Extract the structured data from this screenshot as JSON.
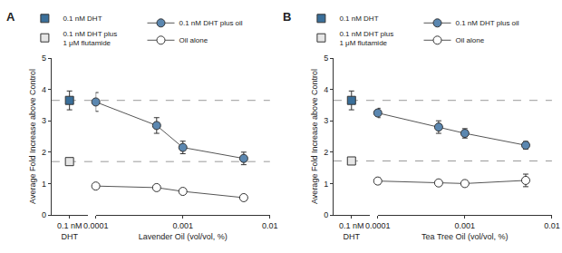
{
  "chart_data": [
    {
      "type": "scatter",
      "title": "A",
      "ylabel": "Average Fold Increase above Control",
      "ylim": [
        0,
        5
      ],
      "yticks": [
        0,
        1,
        2,
        3,
        4,
        5
      ],
      "grid": false,
      "log": "x",
      "legend": "top",
      "control": {
        "xlabel": "DHT",
        "categories": [
          "0.1 nM"
        ]
      },
      "oil": {
        "xlabel": "Lavender Oil (vol/vol, %)",
        "x": [
          0.0001,
          0.0005,
          0.001,
          0.005
        ],
        "xlim": [
          0.0001,
          0.01
        ],
        "xticks": [
          0.0001,
          0.001,
          0.01
        ]
      },
      "series": [
        {
          "name": "0.1 nM DHT",
          "axis": "control",
          "color": "#3a6f9a",
          "marker": "square",
          "values": [
            3.65
          ],
          "error": [
            0.3
          ]
        },
        {
          "name": "0.1 nM DHT plus\n1 μM flutamide",
          "axis": "control",
          "color": "#e6e6e6",
          "marker": "square",
          "values": [
            1.7
          ],
          "error": [
            0.1
          ]
        },
        {
          "name": "0.1 nM DHT plus oil",
          "axis": "oil",
          "color": "#5b87b0",
          "marker": "circle",
          "line_style": "solid",
          "values": [
            3.6,
            2.85,
            2.15,
            1.8
          ],
          "error": [
            0.3,
            0.25,
            0.2,
            0.2
          ]
        },
        {
          "name": "Oil alone",
          "axis": "oil",
          "color": "#ffffff",
          "marker": "circle",
          "line_style": "solid",
          "values": [
            0.92,
            0.87,
            0.75,
            0.55
          ],
          "error": [
            0.05,
            0.05,
            0.05,
            0.05
          ]
        }
      ]
    },
    {
      "type": "scatter",
      "title": "B",
      "ylabel": "Average Fold Increase above Control",
      "ylim": [
        0,
        5
      ],
      "yticks": [
        0,
        1,
        2,
        3,
        4,
        5
      ],
      "grid": false,
      "log": "x",
      "legend": "top",
      "control": {
        "xlabel": "DHT",
        "categories": [
          "0.1 nM"
        ]
      },
      "oil": {
        "xlabel": "Tea Tree Oil (vol/vol, %)",
        "x": [
          0.0001,
          0.0005,
          0.001,
          0.005
        ],
        "xlim": [
          0.0001,
          0.01
        ],
        "xticks": [
          0.0001,
          0.001,
          0.01
        ]
      },
      "series": [
        {
          "name": "0.1 nM DHT",
          "axis": "control",
          "color": "#3a6f9a",
          "marker": "square",
          "values": [
            3.65
          ],
          "error": [
            0.3
          ]
        },
        {
          "name": "0.1 nM DHT plus\n1 μM flutamide",
          "axis": "control",
          "color": "#e6e6e6",
          "marker": "square",
          "values": [
            1.72
          ],
          "error": [
            0.1
          ]
        },
        {
          "name": "0.1 nM DHT plus oil",
          "axis": "oil",
          "color": "#5b87b0",
          "marker": "circle",
          "line_style": "solid",
          "values": [
            3.25,
            2.8,
            2.6,
            2.22
          ],
          "error": [
            0.15,
            0.2,
            0.15,
            0.12
          ]
        },
        {
          "name": "Oil alone",
          "axis": "oil",
          "color": "#ffffff",
          "marker": "circle",
          "line_style": "solid",
          "values": [
            1.08,
            1.02,
            1.0,
            1.1
          ],
          "error": [
            0.1,
            0.05,
            0.05,
            0.2
          ]
        }
      ]
    }
  ]
}
